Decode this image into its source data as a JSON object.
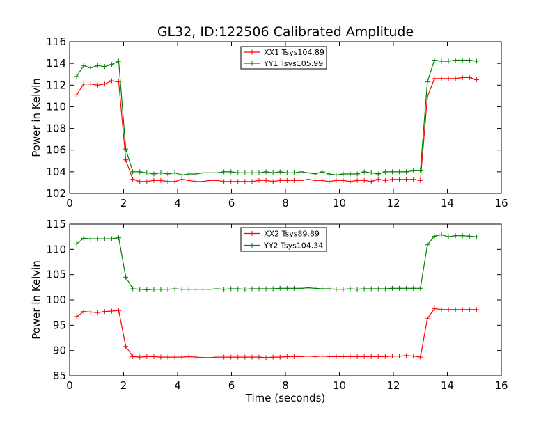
{
  "chart_data": [
    {
      "type": "line",
      "title": "GL32, ID:122506 Calibrated Amplitude",
      "xlabel": "",
      "ylabel": "Power in Kelvin",
      "xlim": [
        0,
        16
      ],
      "ylim": [
        102,
        116
      ],
      "xticks": [
        0,
        2,
        4,
        6,
        8,
        10,
        12,
        14,
        16
      ],
      "yticks": [
        102,
        104,
        106,
        108,
        110,
        112,
        114,
        116
      ],
      "grid": false,
      "legend_position": "top-center",
      "x": [
        0.26,
        0.52,
        0.78,
        1.04,
        1.3,
        1.56,
        1.82,
        2.08,
        2.34,
        2.6,
        2.86,
        3.12,
        3.38,
        3.64,
        3.9,
        4.16,
        4.42,
        4.68,
        4.94,
        5.2,
        5.46,
        5.72,
        5.98,
        6.24,
        6.5,
        6.76,
        7.02,
        7.28,
        7.54,
        7.8,
        8.06,
        8.32,
        8.58,
        8.84,
        9.1,
        9.36,
        9.62,
        9.88,
        10.14,
        10.4,
        10.66,
        10.92,
        11.18,
        11.44,
        11.7,
        11.96,
        12.22,
        12.48,
        12.74,
        13.0,
        13.26,
        13.52,
        13.78,
        14.04,
        14.3,
        14.56,
        14.82,
        15.08
      ],
      "series": [
        {
          "name": "XX1 Tsys104.89",
          "color": "#ff0000",
          "values": [
            111.1,
            112.1,
            112.1,
            112.0,
            112.1,
            112.4,
            112.3,
            105.1,
            103.3,
            103.1,
            103.1,
            103.2,
            103.2,
            103.1,
            103.1,
            103.3,
            103.2,
            103.1,
            103.1,
            103.2,
            103.2,
            103.1,
            103.1,
            103.1,
            103.1,
            103.1,
            103.2,
            103.2,
            103.1,
            103.2,
            103.2,
            103.2,
            103.2,
            103.3,
            103.2,
            103.2,
            103.1,
            103.2,
            103.2,
            103.1,
            103.2,
            103.2,
            103.1,
            103.3,
            103.2,
            103.3,
            103.3,
            103.3,
            103.3,
            103.2,
            110.9,
            112.6,
            112.6,
            112.6,
            112.6,
            112.7,
            112.7,
            112.5
          ]
        },
        {
          "name": "YY1 Tsys105.99",
          "color": "#008000",
          "values": [
            112.8,
            113.8,
            113.6,
            113.8,
            113.7,
            113.9,
            114.2,
            106.1,
            104.0,
            104.0,
            103.9,
            103.8,
            103.9,
            103.8,
            103.9,
            103.7,
            103.8,
            103.8,
            103.9,
            103.9,
            103.9,
            104.0,
            104.0,
            103.9,
            103.9,
            103.9,
            103.9,
            104.0,
            103.9,
            104.0,
            103.9,
            103.9,
            104.0,
            103.9,
            103.8,
            104.0,
            103.8,
            103.7,
            103.8,
            103.8,
            103.8,
            104.0,
            103.9,
            103.8,
            104.0,
            104.0,
            104.0,
            104.0,
            104.1,
            104.1,
            112.3,
            114.3,
            114.2,
            114.2,
            114.3,
            114.3,
            114.3,
            114.2
          ]
        }
      ]
    },
    {
      "type": "line",
      "title": "",
      "xlabel": "Time (seconds)",
      "ylabel": "Power in Kelvin",
      "xlim": [
        0,
        16
      ],
      "ylim": [
        85,
        115
      ],
      "xticks": [
        0,
        2,
        4,
        6,
        8,
        10,
        12,
        14,
        16
      ],
      "yticks": [
        85,
        90,
        95,
        100,
        105,
        110,
        115
      ],
      "grid": false,
      "legend_position": "top-center",
      "x": [
        0.26,
        0.52,
        0.78,
        1.04,
        1.3,
        1.56,
        1.82,
        2.08,
        2.34,
        2.6,
        2.86,
        3.12,
        3.38,
        3.64,
        3.9,
        4.16,
        4.42,
        4.68,
        4.94,
        5.2,
        5.46,
        5.72,
        5.98,
        6.24,
        6.5,
        6.76,
        7.02,
        7.28,
        7.54,
        7.8,
        8.06,
        8.32,
        8.58,
        8.84,
        9.1,
        9.36,
        9.62,
        9.88,
        10.14,
        10.4,
        10.66,
        10.92,
        11.18,
        11.44,
        11.7,
        11.96,
        12.22,
        12.48,
        12.74,
        13.0,
        13.26,
        13.52,
        13.78,
        14.04,
        14.3,
        14.56,
        14.82,
        15.08
      ],
      "series": [
        {
          "name": "XX2 Tsys89.89",
          "color": "#ff0000",
          "values": [
            96.7,
            97.7,
            97.6,
            97.5,
            97.7,
            97.8,
            97.9,
            90.8,
            88.8,
            88.7,
            88.8,
            88.8,
            88.7,
            88.7,
            88.7,
            88.7,
            88.8,
            88.7,
            88.6,
            88.6,
            88.7,
            88.7,
            88.7,
            88.7,
            88.7,
            88.7,
            88.7,
            88.6,
            88.7,
            88.7,
            88.8,
            88.8,
            88.8,
            88.9,
            88.8,
            88.9,
            88.8,
            88.8,
            88.8,
            88.8,
            88.8,
            88.8,
            88.8,
            88.8,
            88.8,
            88.9,
            88.9,
            89.0,
            88.9,
            88.7,
            96.3,
            98.3,
            98.1,
            98.1,
            98.1,
            98.1,
            98.1,
            98.1
          ]
        },
        {
          "name": "YY2 Tsys104.34",
          "color": "#008000",
          "values": [
            111.1,
            112.2,
            112.1,
            112.1,
            112.1,
            112.1,
            112.3,
            104.5,
            102.2,
            102.1,
            102.0,
            102.1,
            102.1,
            102.1,
            102.2,
            102.1,
            102.1,
            102.1,
            102.1,
            102.1,
            102.2,
            102.1,
            102.2,
            102.2,
            102.1,
            102.2,
            102.2,
            102.2,
            102.2,
            102.3,
            102.3,
            102.3,
            102.3,
            102.4,
            102.3,
            102.2,
            102.2,
            102.1,
            102.1,
            102.2,
            102.1,
            102.2,
            102.2,
            102.2,
            102.2,
            102.3,
            102.3,
            102.3,
            102.3,
            102.3,
            110.9,
            112.6,
            112.9,
            112.5,
            112.7,
            112.7,
            112.6,
            112.5
          ]
        }
      ]
    }
  ]
}
